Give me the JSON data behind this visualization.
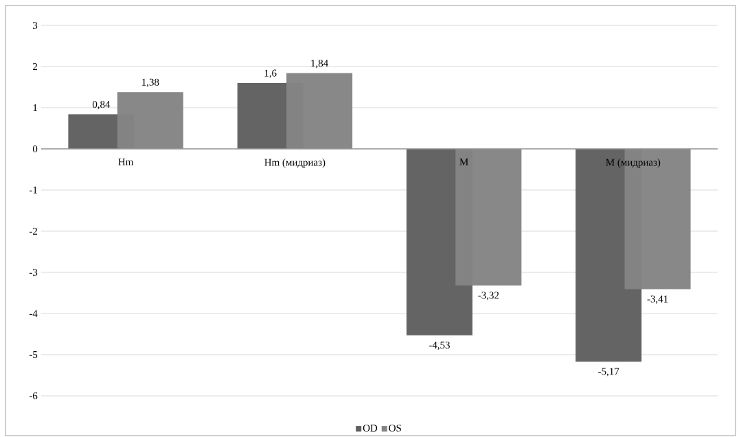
{
  "chart_data": {
    "type": "bar",
    "categories": [
      "Hm",
      "Hm (мидриаз)",
      "M",
      "M (мидриаз)"
    ],
    "series": [
      {
        "name": "OD",
        "color": "#5f5f5f",
        "values": [
          0.84,
          1.6,
          -4.53,
          -5.17
        ],
        "value_labels": [
          "0,84",
          "1,6",
          "-4,53",
          "-5,17"
        ]
      },
      {
        "name": "OS",
        "color": "#848484",
        "values": [
          1.38,
          1.84,
          -3.32,
          -3.41
        ],
        "value_labels": [
          "1,38",
          "1,84",
          "-3,32",
          "-3,41"
        ]
      }
    ],
    "ylim": [
      -6,
      3
    ],
    "yticks": [
      -6,
      -5,
      -4,
      -3,
      -2,
      -1,
      0,
      1,
      2,
      3
    ],
    "grid": "y",
    "legend": "bottom"
  }
}
